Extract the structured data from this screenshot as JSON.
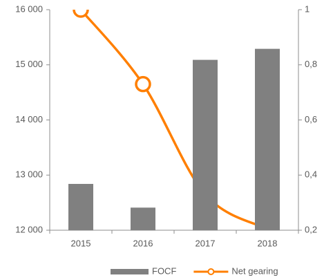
{
  "chart_data": {
    "type": "bar-line",
    "categories": [
      "2015",
      "2016",
      "2017",
      "2018"
    ],
    "series": [
      {
        "name": "FOCF",
        "type": "bar",
        "color": "#808080",
        "values": [
          12840,
          12410,
          15090,
          15290
        ]
      },
      {
        "name": "Net gearing",
        "type": "line",
        "color": "#ff7f00",
        "axis": "y2",
        "values": [
          1.0,
          0.73,
          0.33,
          0.205
        ]
      }
    ],
    "ylim": [
      12000,
      16000
    ],
    "yticks": [
      {
        "value": 12000,
        "label": "12 000"
      },
      {
        "value": 13000,
        "label": "13 000"
      },
      {
        "value": 14000,
        "label": "14 000"
      },
      {
        "value": 15000,
        "label": "15 000"
      },
      {
        "value": 16000,
        "label": "16 000"
      }
    ],
    "y2lim": [
      0.2,
      1
    ],
    "y2ticks": [
      {
        "value": 0.2,
        "label": "0,2"
      },
      {
        "value": 0.4,
        "label": "0,4"
      },
      {
        "value": 0.6,
        "label": "0,6"
      },
      {
        "value": 0.8,
        "label": "0,8"
      },
      1
    ],
    "legend": "bottom"
  }
}
